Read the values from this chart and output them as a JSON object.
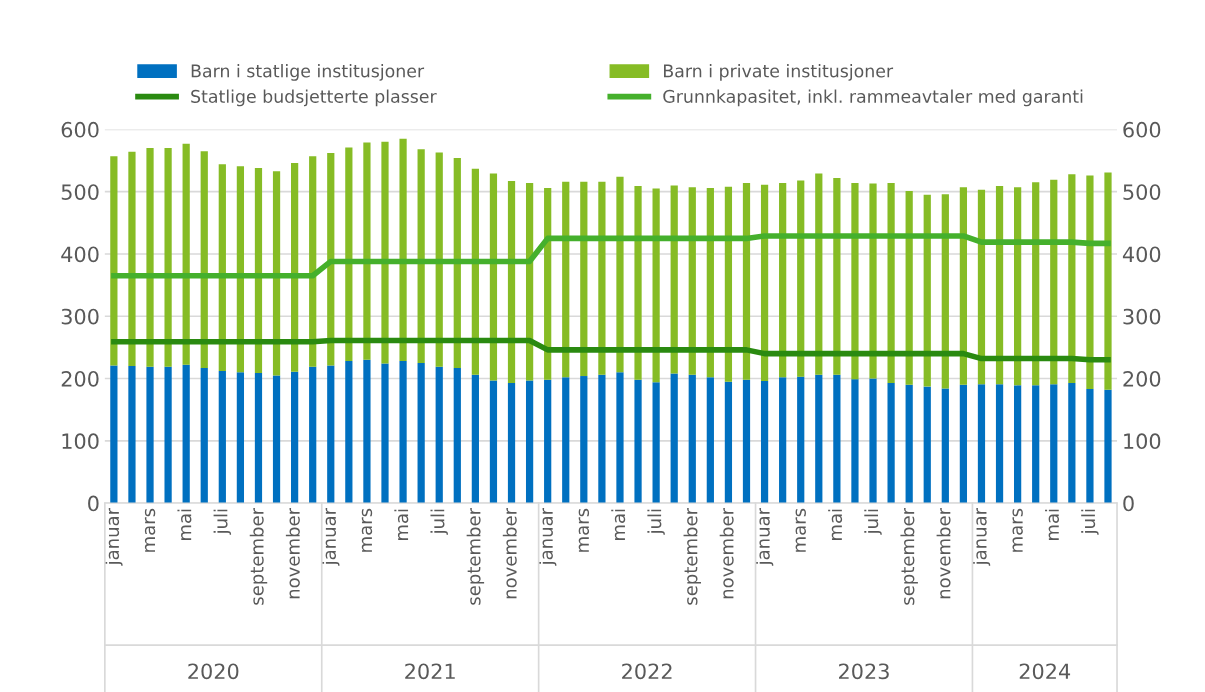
{
  "chart_data": {
    "type": "bar",
    "stacked": true,
    "categories": [
      "januar",
      null,
      "mars",
      null,
      "mai",
      null,
      "juli",
      null,
      "september",
      null,
      "november",
      null,
      "januar",
      null,
      "mars",
      null,
      "mai",
      null,
      "juli",
      null,
      "september",
      null,
      "november",
      null,
      "januar",
      null,
      "mars",
      null,
      "mai",
      null,
      "juli",
      null,
      "september",
      null,
      "november",
      null,
      "januar",
      null,
      "mars",
      null,
      "mai",
      null,
      "juli",
      null,
      "september",
      null,
      "november",
      null,
      "januar",
      null,
      "mars",
      null,
      "mai",
      null,
      "juli",
      null
    ],
    "series": [
      {
        "name": "Barn i statlige institusjoner",
        "color": "#0070c0",
        "values": [
          221,
          220,
          219,
          219,
          222,
          217,
          212,
          210,
          209,
          205,
          211,
          219,
          221,
          228,
          230,
          224,
          228,
          225,
          219,
          217,
          206,
          197,
          193,
          197,
          198,
          202,
          204,
          206,
          210,
          198,
          194,
          208,
          206,
          202,
          195,
          198,
          196,
          202,
          203,
          206,
          206,
          199,
          200,
          193,
          190,
          187,
          184,
          190,
          191,
          191,
          189,
          189,
          191,
          193,
          183,
          182
        ]
      },
      {
        "name": "Barn i private institusjoner",
        "color": "#86bc25",
        "values": [
          336,
          344,
          351,
          351,
          355,
          348,
          332,
          331,
          329,
          328,
          335,
          338,
          341,
          343,
          349,
          356,
          357,
          343,
          344,
          337,
          331,
          332,
          324,
          317,
          308,
          314,
          312,
          310,
          314,
          311,
          311,
          302,
          301,
          304,
          313,
          316,
          315,
          312,
          315,
          323,
          316,
          315,
          313,
          321,
          311,
          308,
          312,
          317,
          312,
          318,
          318,
          326,
          328,
          335,
          343,
          349
        ]
      },
      {
        "name": "Statlige budsjetterte plasser",
        "type": "line",
        "color": "#2a8a10",
        "values": [
          259,
          259,
          259,
          259,
          259,
          259,
          259,
          259,
          259,
          259,
          259,
          259,
          261,
          261,
          261,
          261,
          261,
          261,
          261,
          261,
          261,
          261,
          261,
          261,
          246,
          246,
          246,
          246,
          246,
          246,
          246,
          246,
          246,
          246,
          246,
          246,
          240,
          240,
          240,
          240,
          240,
          240,
          240,
          240,
          240,
          240,
          240,
          240,
          232,
          232,
          232,
          232,
          232,
          232,
          230,
          230
        ]
      },
      {
        "name": "Grunnkapasitet, inkl. rammeavtaler med garanti",
        "type": "line",
        "color": "#45b02c",
        "values": [
          365,
          365,
          365,
          365,
          365,
          365,
          365,
          365,
          365,
          365,
          365,
          365,
          388,
          388,
          388,
          388,
          388,
          388,
          388,
          388,
          388,
          388,
          388,
          388,
          425,
          425,
          425,
          425,
          425,
          425,
          425,
          425,
          425,
          425,
          425,
          425,
          429,
          429,
          429,
          429,
          429,
          429,
          429,
          429,
          429,
          429,
          429,
          429,
          419,
          419,
          419,
          419,
          419,
          419,
          417,
          417
        ]
      }
    ],
    "ylim": [
      0,
      600
    ],
    "yticks": [
      0,
      100,
      200,
      300,
      400,
      500,
      600
    ],
    "y2lim": [
      0,
      600
    ],
    "y2ticks": [
      0,
      100,
      200,
      300,
      400,
      500,
      600
    ],
    "grid": "y",
    "legend": "top",
    "marker": "none",
    "line_style": "solid",
    "annotations": [
      "2020",
      "2021",
      "2022",
      "2023",
      "2024"
    ]
  }
}
